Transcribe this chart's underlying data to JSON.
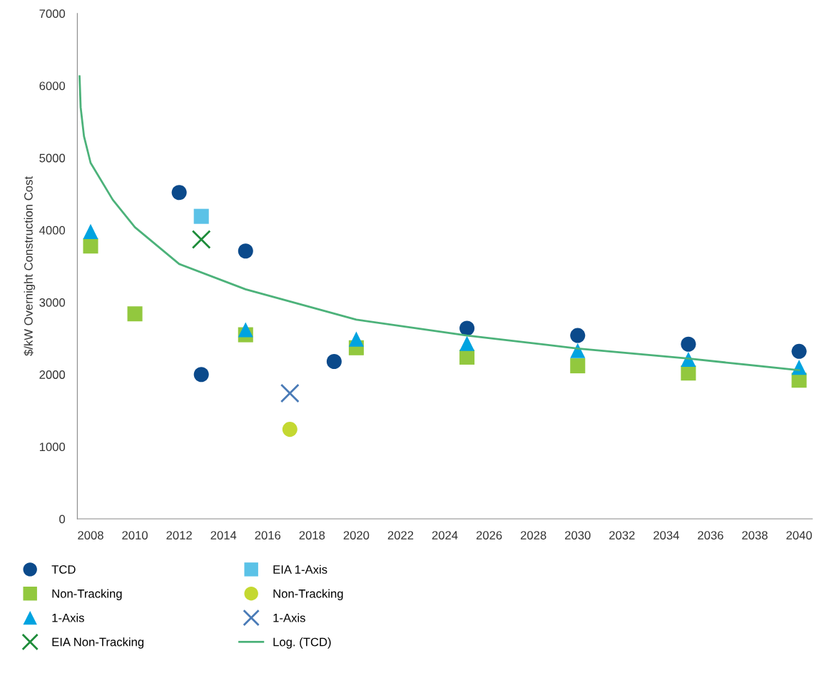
{
  "chart_data": {
    "type": "scatter",
    "ylabel": "$/kW Overnight Construction Cost",
    "xlim": [
      2007.4,
      2040.6
    ],
    "xticks": [
      2008,
      2010,
      2012,
      2014,
      2016,
      2018,
      2020,
      2022,
      2024,
      2026,
      2028,
      2030,
      2032,
      2034,
      2036,
      2038,
      2040
    ],
    "ylim": [
      0,
      7000
    ],
    "yticks": [
      0,
      1000,
      2000,
      3000,
      4000,
      5000,
      6000,
      7000
    ],
    "grid": false,
    "legend": "bottom",
    "series": [
      {
        "name": "TCD",
        "marker": "circle",
        "color": "#0b4a8b",
        "x": [
          2012,
          2013,
          2015,
          2019,
          2025,
          2030,
          2035,
          2040
        ],
        "values": [
          4520,
          2000,
          3710,
          2180,
          2640,
          2540,
          2420,
          2320
        ]
      },
      {
        "name": "Non-Tracking",
        "marker": "square",
        "color": "#92c83e",
        "x": [
          2008,
          2010,
          2015,
          2020,
          2025,
          2030,
          2035,
          2040
        ],
        "values": [
          3780,
          2840,
          2550,
          2370,
          2240,
          2120,
          2020,
          1920
        ]
      },
      {
        "name": "1-Axis",
        "marker": "triangle",
        "color": "#00a3e0",
        "x": [
          2008,
          2015,
          2020,
          2025,
          2030,
          2035,
          2040
        ],
        "values": [
          3980,
          2620,
          2490,
          2430,
          2330,
          2210,
          2100
        ]
      },
      {
        "name": "EIA Non-Tracking",
        "marker": "cross",
        "color": "#1e8c3a",
        "x": [
          2013
        ],
        "values": [
          3870
        ]
      },
      {
        "name": "EIA 1-Axis",
        "marker": "square",
        "color": "#5bc2e7",
        "x": [
          2013
        ],
        "values": [
          4190
        ]
      },
      {
        "name": "Non-Tracking",
        "marker": "circle",
        "color": "#c4d831",
        "x": [
          2017
        ],
        "values": [
          1240
        ]
      },
      {
        "name": "1-Axis",
        "marker": "cross",
        "color": "#4a7bb7",
        "x": [
          2017
        ],
        "values": [
          1740
        ]
      },
      {
        "name": "Log. (TCD)",
        "type": "line",
        "marker": "none",
        "line_style": "solid",
        "color": "#4cb27a",
        "x": [
          2007.5,
          2007.55,
          2007.7,
          2008,
          2009,
          2010,
          2012,
          2015,
          2020,
          2025,
          2030,
          2035,
          2040
        ],
        "values": [
          6130,
          5700,
          5300,
          4930,
          4420,
          4040,
          3530,
          3180,
          2760,
          2540,
          2360,
          2220,
          2060
        ]
      }
    ]
  }
}
